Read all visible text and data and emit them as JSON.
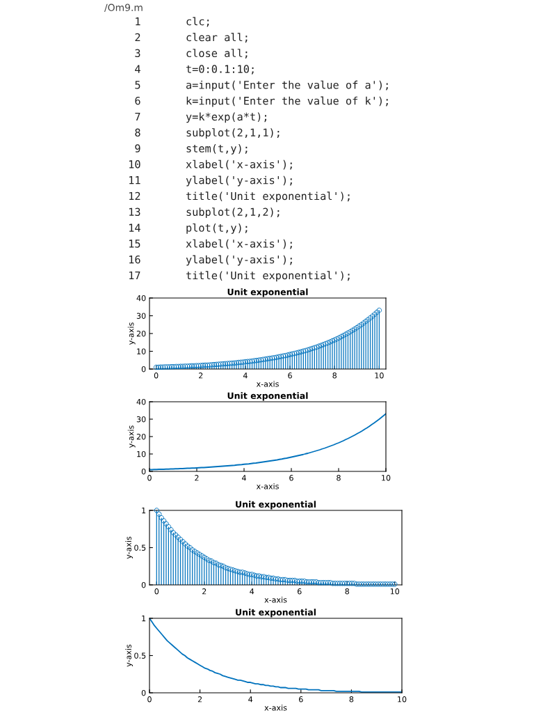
{
  "chart_data": [
    {
      "type": "other",
      "title": "/Om9.m",
      "annotations": [
        "1 clc;",
        "2 clear all;",
        "3 close all;",
        "4 t=0:0.1:10;",
        "5 a=input('Enter the value of a');",
        "6 k=input('Enter the value of k');",
        "7 y=k*exp(a*t);",
        "8 subplot(2,1,1);",
        "9 stem(t,y);",
        "10 xlabel('x-axis');",
        "11 ylabel('y-axis');",
        "12 title('Unit exponential');",
        "13 subplot(2,1,2);",
        "14 plot(t,y);",
        "15 xlabel('x-axis');",
        "16 ylabel('y-axis');",
        "17 title('Unit exponential');"
      ]
    },
    {
      "type": "lollipop",
      "title": "Unit exponential",
      "xlabel": "x-axis",
      "ylabel": "y-axis",
      "marker": "circle",
      "grid": false,
      "xlim": [
        -0.3,
        10.3
      ],
      "xticks": [
        0,
        2,
        4,
        6,
        8,
        10
      ],
      "ylim": [
        0,
        40
      ],
      "yticks": [
        0,
        10,
        20,
        30,
        40
      ],
      "x": [
        0,
        0.1,
        0.2,
        0.3,
        0.4,
        0.5,
        0.6,
        0.7,
        0.8,
        0.9,
        1,
        1.1,
        1.2,
        1.3,
        1.4,
        1.5,
        1.6,
        1.7,
        1.8,
        1.9,
        2,
        2.1,
        2.2,
        2.3,
        2.4,
        2.5,
        2.6,
        2.7,
        2.8,
        2.9,
        3,
        3.1,
        3.2,
        3.3,
        3.4,
        3.5,
        3.6,
        3.7,
        3.8,
        3.9,
        4,
        4.1,
        4.2,
        4.3,
        4.4,
        4.5,
        4.6,
        4.7,
        4.8,
        4.9,
        5,
        5.1,
        5.2,
        5.3,
        5.4,
        5.5,
        5.6,
        5.7,
        5.8,
        5.9,
        6,
        6.1,
        6.2,
        6.3,
        6.4,
        6.5,
        6.6,
        6.7,
        6.8,
        6.9,
        7,
        7.1,
        7.2,
        7.3,
        7.4,
        7.5,
        7.6,
        7.7,
        7.8,
        7.9,
        8,
        8.1,
        8.2,
        8.3,
        8.4,
        8.5,
        8.6,
        8.7,
        8.8,
        8.9,
        9,
        9.1,
        9.2,
        9.3,
        9.4,
        9.5,
        9.6,
        9.7,
        9.8,
        9.9,
        10
      ],
      "series": [
        {
          "color": "#0072bd",
          "values": [
            1.0,
            1.0,
            1.1,
            1.1,
            1.2,
            1.2,
            1.2,
            1.3,
            1.3,
            1.4,
            1.4,
            1.5,
            1.5,
            1.6,
            1.6,
            1.7,
            1.8,
            1.8,
            1.9,
            1.9,
            2.0,
            2.1,
            2.2,
            2.2,
            2.3,
            2.4,
            2.5,
            2.6,
            2.7,
            2.8,
            2.9,
            3.0,
            3.1,
            3.2,
            3.3,
            3.4,
            3.5,
            3.7,
            3.8,
            3.9,
            4.1,
            4.2,
            4.3,
            4.5,
            4.7,
            4.8,
            5.0,
            5.2,
            5.4,
            5.6,
            5.8,
            6.0,
            6.2,
            6.4,
            6.6,
            6.9,
            7.1,
            7.4,
            7.6,
            7.9,
            8.2,
            8.5,
            8.8,
            9.1,
            9.4,
            9.7,
            10.1,
            10.4,
            10.8,
            11.2,
            11.6,
            12.0,
            12.4,
            12.9,
            13.3,
            13.8,
            14.3,
            14.8,
            15.3,
            15.9,
            16.4,
            17.0,
            17.6,
            18.3,
            18.9,
            19.6,
            20.3,
            21.0,
            21.8,
            22.5,
            23.3,
            24.2,
            25.0,
            25.9,
            26.9,
            27.8,
            28.8,
            29.8,
            30.9,
            32.0,
            33.1
          ]
        }
      ]
    },
    {
      "type": "line",
      "title": "Unit exponential",
      "xlabel": "x-axis",
      "ylabel": "y-axis",
      "marker": "none",
      "line_style": "solid",
      "grid": false,
      "xlim": [
        0,
        10
      ],
      "xticks": [
        0,
        2,
        4,
        6,
        8,
        10
      ],
      "ylim": [
        0,
        40
      ],
      "yticks": [
        0,
        10,
        20,
        30,
        40
      ],
      "x": [
        0,
        0.1,
        0.2,
        0.3,
        0.4,
        0.5,
        0.6,
        0.7,
        0.8,
        0.9,
        1,
        1.1,
        1.2,
        1.3,
        1.4,
        1.5,
        1.6,
        1.7,
        1.8,
        1.9,
        2,
        2.1,
        2.2,
        2.3,
        2.4,
        2.5,
        2.6,
        2.7,
        2.8,
        2.9,
        3,
        3.1,
        3.2,
        3.3,
        3.4,
        3.5,
        3.6,
        3.7,
        3.8,
        3.9,
        4,
        4.1,
        4.2,
        4.3,
        4.4,
        4.5,
        4.6,
        4.7,
        4.8,
        4.9,
        5,
        5.1,
        5.2,
        5.3,
        5.4,
        5.5,
        5.6,
        5.7,
        5.8,
        5.9,
        6,
        6.1,
        6.2,
        6.3,
        6.4,
        6.5,
        6.6,
        6.7,
        6.8,
        6.9,
        7,
        7.1,
        7.2,
        7.3,
        7.4,
        7.5,
        7.6,
        7.7,
        7.8,
        7.9,
        8,
        8.1,
        8.2,
        8.3,
        8.4,
        8.5,
        8.6,
        8.7,
        8.8,
        8.9,
        9,
        9.1,
        9.2,
        9.3,
        9.4,
        9.5,
        9.6,
        9.7,
        9.8,
        9.9,
        10
      ],
      "series": [
        {
          "color": "#0072bd",
          "values": [
            1.0,
            1.0,
            1.1,
            1.1,
            1.2,
            1.2,
            1.2,
            1.3,
            1.3,
            1.4,
            1.4,
            1.5,
            1.5,
            1.6,
            1.6,
            1.7,
            1.8,
            1.8,
            1.9,
            1.9,
            2.0,
            2.1,
            2.2,
            2.2,
            2.3,
            2.4,
            2.5,
            2.6,
            2.7,
            2.8,
            2.9,
            3.0,
            3.1,
            3.2,
            3.3,
            3.4,
            3.5,
            3.7,
            3.8,
            3.9,
            4.1,
            4.2,
            4.3,
            4.5,
            4.7,
            4.8,
            5.0,
            5.2,
            5.4,
            5.6,
            5.8,
            6.0,
            6.2,
            6.4,
            6.6,
            6.9,
            7.1,
            7.4,
            7.6,
            7.9,
            8.2,
            8.5,
            8.8,
            9.1,
            9.4,
            9.7,
            10.1,
            10.4,
            10.8,
            11.2,
            11.6,
            12.0,
            12.4,
            12.9,
            13.3,
            13.8,
            14.3,
            14.8,
            15.3,
            15.9,
            16.4,
            17.0,
            17.6,
            18.3,
            18.9,
            19.6,
            20.3,
            21.0,
            21.8,
            22.5,
            23.3,
            24.2,
            25.0,
            25.9,
            26.9,
            27.8,
            28.8,
            29.8,
            30.9,
            32.0,
            33.1
          ]
        }
      ]
    },
    {
      "type": "lollipop",
      "title": "Unit exponential",
      "xlabel": "x-axis",
      "ylabel": "y-axis",
      "marker": "circle",
      "grid": false,
      "xlim": [
        -0.3,
        10.3
      ],
      "xticks": [
        0,
        2,
        4,
        6,
        8,
        10
      ],
      "ylim": [
        0,
        1
      ],
      "yticks": [
        0,
        0.5,
        1
      ],
      "x": [
        0,
        0.1,
        0.2,
        0.3,
        0.4,
        0.5,
        0.6,
        0.7,
        0.8,
        0.9,
        1,
        1.1,
        1.2,
        1.3,
        1.4,
        1.5,
        1.6,
        1.7,
        1.8,
        1.9,
        2,
        2.1,
        2.2,
        2.3,
        2.4,
        2.5,
        2.6,
        2.7,
        2.8,
        2.9,
        3,
        3.1,
        3.2,
        3.3,
        3.4,
        3.5,
        3.6,
        3.7,
        3.8,
        3.9,
        4,
        4.1,
        4.2,
        4.3,
        4.4,
        4.5,
        4.6,
        4.7,
        4.8,
        4.9,
        5,
        5.1,
        5.2,
        5.3,
        5.4,
        5.5,
        5.6,
        5.7,
        5.8,
        5.9,
        6,
        6.1,
        6.2,
        6.3,
        6.4,
        6.5,
        6.6,
        6.7,
        6.8,
        6.9,
        7,
        7.1,
        7.2,
        7.3,
        7.4,
        7.5,
        7.6,
        7.7,
        7.8,
        7.9,
        8,
        8.1,
        8.2,
        8.3,
        8.4,
        8.5,
        8.6,
        8.7,
        8.8,
        8.9,
        9,
        9.1,
        9.2,
        9.3,
        9.4,
        9.5,
        9.6,
        9.7,
        9.8,
        9.9,
        10
      ],
      "series": [
        {
          "color": "#0072bd",
          "values": [
            1.0,
            0.95,
            0.9,
            0.86,
            0.82,
            0.78,
            0.74,
            0.7,
            0.67,
            0.64,
            0.61,
            0.58,
            0.55,
            0.52,
            0.5,
            0.47,
            0.45,
            0.43,
            0.41,
            0.39,
            0.37,
            0.35,
            0.33,
            0.32,
            0.3,
            0.29,
            0.27,
            0.26,
            0.25,
            0.23,
            0.22,
            0.21,
            0.2,
            0.19,
            0.18,
            0.17,
            0.17,
            0.16,
            0.15,
            0.14,
            0.14,
            0.13,
            0.12,
            0.12,
            0.11,
            0.11,
            0.1,
            0.1,
            0.09,
            0.09,
            0.08,
            0.08,
            0.07,
            0.07,
            0.07,
            0.06,
            0.06,
            0.06,
            0.06,
            0.05,
            0.05,
            0.05,
            0.05,
            0.04,
            0.04,
            0.04,
            0.04,
            0.04,
            0.03,
            0.03,
            0.03,
            0.03,
            0.03,
            0.03,
            0.02,
            0.02,
            0.02,
            0.02,
            0.02,
            0.02,
            0.02,
            0.02,
            0.02,
            0.02,
            0.01,
            0.01,
            0.01,
            0.01,
            0.01,
            0.01,
            0.01,
            0.01,
            0.01,
            0.01,
            0.01,
            0.01,
            0.01,
            0.01,
            0.01,
            0.01,
            0.01
          ]
        }
      ]
    },
    {
      "type": "line",
      "title": "Unit exponential",
      "xlabel": "x-axis",
      "ylabel": "y-axis",
      "marker": "none",
      "line_style": "solid",
      "grid": false,
      "xlim": [
        0,
        10
      ],
      "xticks": [
        0,
        2,
        4,
        6,
        8,
        10
      ],
      "ylim": [
        0,
        1
      ],
      "yticks": [
        0,
        0.5,
        1
      ],
      "x": [
        0,
        0.1,
        0.2,
        0.3,
        0.4,
        0.5,
        0.6,
        0.7,
        0.8,
        0.9,
        1,
        1.1,
        1.2,
        1.3,
        1.4,
        1.5,
        1.6,
        1.7,
        1.8,
        1.9,
        2,
        2.1,
        2.2,
        2.3,
        2.4,
        2.5,
        2.6,
        2.7,
        2.8,
        2.9,
        3,
        3.1,
        3.2,
        3.3,
        3.4,
        3.5,
        3.6,
        3.7,
        3.8,
        3.9,
        4,
        4.1,
        4.2,
        4.3,
        4.4,
        4.5,
        4.6,
        4.7,
        4.8,
        4.9,
        5,
        5.1,
        5.2,
        5.3,
        5.4,
        5.5,
        5.6,
        5.7,
        5.8,
        5.9,
        6,
        6.1,
        6.2,
        6.3,
        6.4,
        6.5,
        6.6,
        6.7,
        6.8,
        6.9,
        7,
        7.1,
        7.2,
        7.3,
        7.4,
        7.5,
        7.6,
        7.7,
        7.8,
        7.9,
        8,
        8.1,
        8.2,
        8.3,
        8.4,
        8.5,
        8.6,
        8.7,
        8.8,
        8.9,
        9,
        9.1,
        9.2,
        9.3,
        9.4,
        9.5,
        9.6,
        9.7,
        9.8,
        9.9,
        10
      ],
      "series": [
        {
          "color": "#0072bd",
          "values": [
            1.0,
            0.95,
            0.9,
            0.86,
            0.82,
            0.78,
            0.74,
            0.7,
            0.67,
            0.64,
            0.61,
            0.58,
            0.55,
            0.52,
            0.5,
            0.47,
            0.45,
            0.43,
            0.41,
            0.39,
            0.37,
            0.35,
            0.33,
            0.32,
            0.3,
            0.29,
            0.27,
            0.26,
            0.25,
            0.23,
            0.22,
            0.21,
            0.2,
            0.19,
            0.18,
            0.17,
            0.17,
            0.16,
            0.15,
            0.14,
            0.14,
            0.13,
            0.12,
            0.12,
            0.11,
            0.11,
            0.1,
            0.1,
            0.09,
            0.09,
            0.08,
            0.08,
            0.07,
            0.07,
            0.07,
            0.06,
            0.06,
            0.06,
            0.06,
            0.05,
            0.05,
            0.05,
            0.05,
            0.04,
            0.04,
            0.04,
            0.04,
            0.04,
            0.03,
            0.03,
            0.03,
            0.03,
            0.03,
            0.03,
            0.02,
            0.02,
            0.02,
            0.02,
            0.02,
            0.02,
            0.02,
            0.02,
            0.02,
            0.02,
            0.01,
            0.01,
            0.01,
            0.01,
            0.01,
            0.01,
            0.01,
            0.01,
            0.01,
            0.01,
            0.01,
            0.01,
            0.01,
            0.01,
            0.01,
            0.01,
            0.01
          ]
        }
      ]
    }
  ]
}
